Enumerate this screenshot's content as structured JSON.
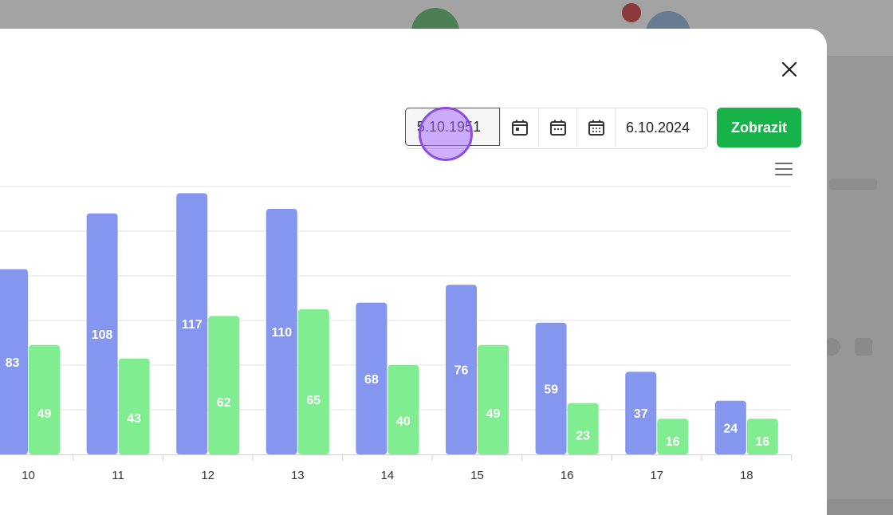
{
  "modal": {
    "close_icon": "close-icon",
    "date_from": {
      "value": "5.10.1951",
      "placeholder": ""
    },
    "calendar_icons": [
      "calendar-day-icon",
      "calendar-month-icon",
      "calendar-year-icon"
    ],
    "date_to": "6.10.2024",
    "show_button": "Zobrazit",
    "chart_menu_icon": "hamburger-menu-icon"
  },
  "colors": {
    "series1": "#8596ee",
    "series2": "#7fed90",
    "button": "#17b24a",
    "grid": "#e3e3e3"
  },
  "chart_data": {
    "type": "bar",
    "categories": [
      "10",
      "11",
      "12",
      "13",
      "14",
      "15",
      "16",
      "17",
      "18"
    ],
    "series": [
      {
        "values": [
          83,
          108,
          117,
          110,
          68,
          76,
          59,
          37,
          24
        ]
      },
      {
        "values": [
          49,
          43,
          62,
          65,
          40,
          49,
          23,
          16,
          16
        ]
      }
    ],
    "ylim": [
      0,
      120
    ],
    "grid": true,
    "data_labels": true
  }
}
